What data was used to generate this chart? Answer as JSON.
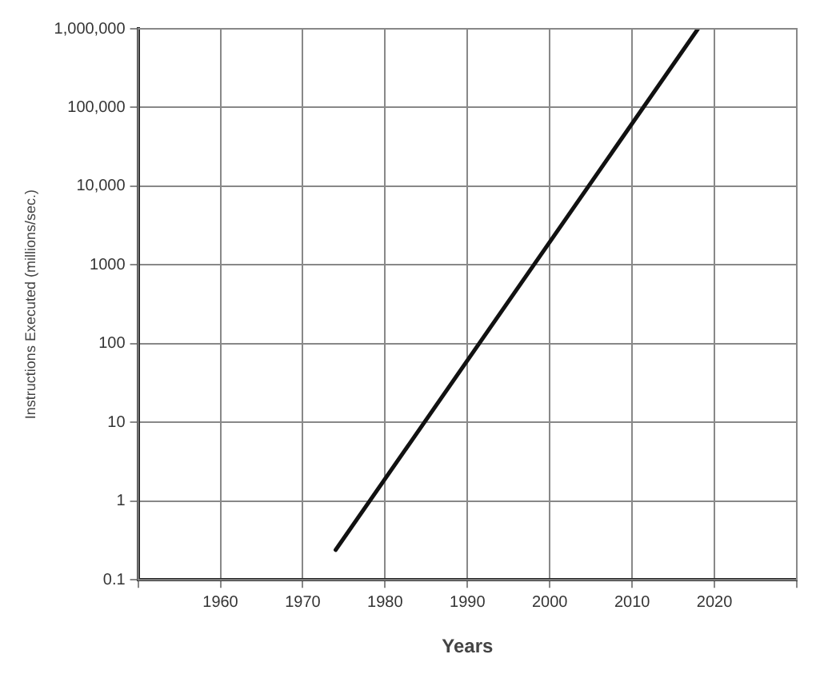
{
  "chart_data": {
    "type": "line",
    "xlabel": "Years",
    "ylabel": "Instructions Executed (millions/sec.)",
    "x": [
      1974,
      2018
    ],
    "series": [
      {
        "color": "#111111",
        "values": [
          0.24,
          1000000
        ]
      }
    ],
    "xlim": [
      1950,
      2030
    ],
    "xticks": [
      {
        "value": 1950,
        "label": null
      },
      1960,
      1970,
      1980,
      1990,
      2000,
      2010,
      2020,
      {
        "value": 2030,
        "label": null
      }
    ],
    "ylim": [
      0.1,
      1000000
    ],
    "yticks": [
      0.1,
      1,
      10,
      100,
      1000,
      {
        "value": 10000,
        "label": "10,000"
      },
      {
        "value": 100000,
        "label": "100,000"
      },
      {
        "value": 1000000,
        "label": "1,000,000"
      }
    ],
    "log": "y",
    "grid": true,
    "legend": false,
    "marker": "none",
    "line_style": "solid"
  }
}
